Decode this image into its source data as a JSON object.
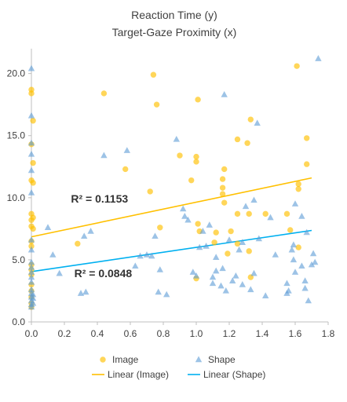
{
  "chart_data": {
    "type": "scatter",
    "title_lines": [
      "Reaction Time (y)",
      "Target-Gaze Proximity (x)"
    ],
    "xlim": [
      0,
      1.8
    ],
    "ylim": [
      0,
      22
    ],
    "x_ticks": [
      0.0,
      0.2,
      0.4,
      0.6,
      0.8,
      1.0,
      1.2,
      1.4,
      1.6,
      1.8
    ],
    "x_tick_labels": [
      "0.0",
      "0.2",
      "0.4",
      "0.6",
      "0.8",
      "1.0",
      "1.2",
      "1.4",
      "1.6",
      "1.8"
    ],
    "y_ticks": [
      0,
      5,
      10,
      15,
      20
    ],
    "y_tick_labels": [
      "0.0",
      "5.0",
      "10.0",
      "15.0",
      "20.0"
    ],
    "grid": false,
    "legend_position": "bottom",
    "colors": {
      "image": "#ffc000",
      "shape": "#5b9bd5",
      "image_line": "#ffc000",
      "shape_line": "#00b0f0",
      "axis": "#bfbfbf"
    },
    "series": [
      {
        "name": "Image",
        "marker": "circle",
        "points": [
          [
            0.0,
            18.7
          ],
          [
            0.0,
            18.4
          ],
          [
            0.01,
            16.2
          ],
          [
            0.0,
            14.3
          ],
          [
            0.01,
            12.8
          ],
          [
            0.0,
            11.4
          ],
          [
            0.01,
            11.2
          ],
          [
            0.0,
            8.7
          ],
          [
            0.01,
            8.4
          ],
          [
            0.0,
            8.2
          ],
          [
            0.0,
            7.7
          ],
          [
            0.01,
            7.5
          ],
          [
            0.0,
            6.5
          ],
          [
            0.0,
            6.1
          ],
          [
            0.0,
            4.6
          ],
          [
            0.0,
            4.2
          ],
          [
            0.0,
            3.8
          ],
          [
            0.0,
            3.0
          ],
          [
            0.0,
            2.5
          ],
          [
            0.0,
            2.0
          ],
          [
            0.0,
            1.5
          ],
          [
            0.0,
            1.2
          ],
          [
            0.28,
            6.3
          ],
          [
            0.44,
            18.4
          ],
          [
            0.57,
            12.3
          ],
          [
            0.72,
            10.5
          ],
          [
            0.74,
            19.9
          ],
          [
            0.76,
            17.5
          ],
          [
            0.78,
            7.6
          ],
          [
            0.9,
            13.4
          ],
          [
            0.97,
            11.4
          ],
          [
            1.0,
            13.3
          ],
          [
            1.0,
            12.9
          ],
          [
            1.01,
            17.9
          ],
          [
            1.01,
            7.9
          ],
          [
            1.02,
            7.3
          ],
          [
            1.11,
            6.4
          ],
          [
            1.16,
            11.5
          ],
          [
            1.16,
            10.8
          ],
          [
            1.16,
            10.3
          ],
          [
            1.17,
            12.3
          ],
          [
            1.17,
            9.6
          ],
          [
            1.19,
            5.5
          ],
          [
            1.21,
            7.3
          ],
          [
            1.25,
            14.7
          ],
          [
            1.25,
            8.7
          ],
          [
            1.25,
            6.3
          ],
          [
            1.31,
            14.4
          ],
          [
            1.32,
            8.7
          ],
          [
            1.32,
            5.7
          ],
          [
            1.33,
            16.3
          ],
          [
            1.33,
            3.6
          ],
          [
            1.42,
            8.7
          ],
          [
            1.55,
            8.7
          ],
          [
            1.57,
            7.4
          ],
          [
            1.61,
            20.6
          ],
          [
            1.62,
            11.1
          ],
          [
            1.62,
            10.7
          ],
          [
            1.62,
            6.0
          ],
          [
            1.67,
            14.8
          ],
          [
            1.67,
            12.7
          ],
          [
            1.12,
            7.2
          ],
          [
            1.0,
            3.5
          ]
        ]
      },
      {
        "name": "Shape",
        "marker": "triangle",
        "points": [
          [
            0.0,
            20.4
          ],
          [
            0.0,
            16.6
          ],
          [
            0.0,
            14.4
          ],
          [
            0.0,
            13.5
          ],
          [
            0.0,
            12.2
          ],
          [
            0.0,
            10.4
          ],
          [
            0.0,
            6.6
          ],
          [
            0.0,
            5.8
          ],
          [
            0.0,
            4.8
          ],
          [
            0.0,
            4.4
          ],
          [
            0.0,
            4.0
          ],
          [
            0.0,
            3.6
          ],
          [
            0.0,
            3.2
          ],
          [
            0.0,
            2.6
          ],
          [
            0.0,
            2.3
          ],
          [
            0.0,
            2.0
          ],
          [
            0.0,
            1.7
          ],
          [
            0.0,
            1.4
          ],
          [
            0.0,
            1.2
          ],
          [
            0.01,
            2.2
          ],
          [
            0.01,
            1.9
          ],
          [
            0.01,
            1.5
          ],
          [
            0.1,
            7.6
          ],
          [
            0.13,
            5.4
          ],
          [
            0.17,
            3.9
          ],
          [
            0.3,
            2.3
          ],
          [
            0.32,
            6.9
          ],
          [
            0.33,
            2.4
          ],
          [
            0.36,
            7.3
          ],
          [
            0.44,
            13.4
          ],
          [
            0.58,
            13.8
          ],
          [
            0.63,
            4.5
          ],
          [
            0.66,
            5.3
          ],
          [
            0.7,
            5.4
          ],
          [
            0.73,
            5.3
          ],
          [
            0.75,
            6.9
          ],
          [
            0.77,
            2.4
          ],
          [
            0.78,
            4.2
          ],
          [
            0.82,
            2.2
          ],
          [
            0.88,
            14.7
          ],
          [
            0.92,
            9.1
          ],
          [
            0.93,
            8.5
          ],
          [
            0.95,
            8.2
          ],
          [
            0.98,
            4.0
          ],
          [
            1.0,
            3.7
          ],
          [
            1.02,
            6.0
          ],
          [
            1.04,
            7.3
          ],
          [
            1.06,
            6.1
          ],
          [
            1.08,
            7.8
          ],
          [
            1.1,
            3.6
          ],
          [
            1.1,
            3.1
          ],
          [
            1.12,
            4.1
          ],
          [
            1.12,
            5.2
          ],
          [
            1.15,
            2.9
          ],
          [
            1.16,
            4.3
          ],
          [
            1.17,
            18.3
          ],
          [
            1.18,
            2.5
          ],
          [
            1.2,
            6.6
          ],
          [
            1.22,
            3.3
          ],
          [
            1.24,
            3.7
          ],
          [
            1.26,
            5.8
          ],
          [
            1.28,
            3.0
          ],
          [
            1.28,
            6.4
          ],
          [
            1.3,
            9.3
          ],
          [
            1.33,
            2.6
          ],
          [
            1.35,
            9.8
          ],
          [
            1.35,
            3.9
          ],
          [
            1.37,
            16.0
          ],
          [
            1.38,
            6.7
          ],
          [
            1.42,
            2.1
          ],
          [
            1.45,
            8.4
          ],
          [
            1.48,
            5.4
          ],
          [
            1.55,
            3.1
          ],
          [
            1.55,
            2.3
          ],
          [
            1.59,
            6.2
          ],
          [
            1.59,
            5.0
          ],
          [
            1.6,
            9.5
          ],
          [
            1.6,
            4.0
          ],
          [
            1.64,
            8.5
          ],
          [
            1.64,
            4.5
          ],
          [
            1.66,
            3.3
          ],
          [
            1.66,
            2.7
          ],
          [
            1.67,
            7.2
          ],
          [
            1.68,
            1.7
          ],
          [
            1.7,
            4.6
          ],
          [
            1.71,
            5.5
          ],
          [
            1.72,
            4.8
          ],
          [
            1.74,
            21.2
          ],
          [
            1.56,
            2.5
          ],
          [
            1.58,
            5.8
          ]
        ]
      }
    ],
    "trendlines": [
      {
        "name": "Linear (Image)",
        "series": "Image",
        "x_range": [
          0.0,
          1.7
        ],
        "slope": 2.79,
        "intercept": 6.85,
        "r2_label": "R² = 0.1153",
        "r2_at": [
          0.24,
          9.6
        ]
      },
      {
        "name": "Linear (Shape)",
        "series": "Shape",
        "x_range": [
          0.0,
          1.7
        ],
        "slope": 1.95,
        "intercept": 4.05,
        "r2_label": "R² = 0.0848",
        "r2_at": [
          0.26,
          3.6
        ]
      }
    ],
    "legend": [
      {
        "label": "Image",
        "kind": "circle",
        "color": "#ffc000"
      },
      {
        "label": "Shape",
        "kind": "triangle",
        "color": "#5b9bd5"
      },
      {
        "label": "Linear (Image)",
        "kind": "line",
        "color": "#ffc000"
      },
      {
        "label": "Linear (Shape)",
        "kind": "line",
        "color": "#00b0f0"
      }
    ]
  }
}
